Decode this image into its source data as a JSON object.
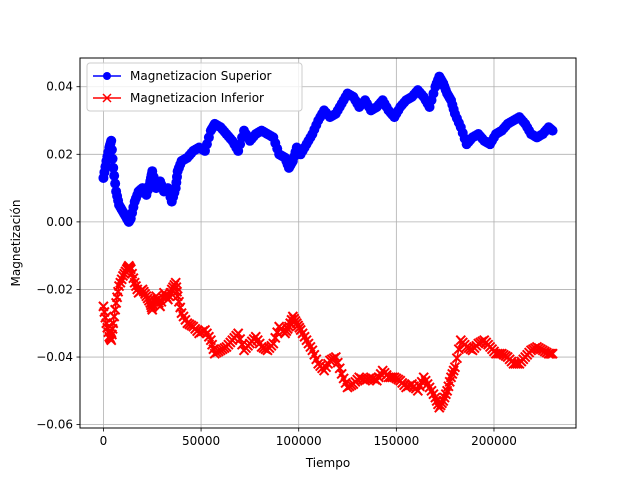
{
  "chart_data": {
    "type": "line",
    "title": "",
    "xlabel": "Tiempo",
    "ylabel": "Magnetización",
    "xlim": [
      -12000,
      242000
    ],
    "ylim": [
      -0.061,
      0.0485
    ],
    "xticks": [
      0,
      50000,
      100000,
      150000,
      200000
    ],
    "xtick_labels": [
      "0",
      "50000",
      "100000",
      "150000",
      "200000"
    ],
    "yticks": [
      -0.06,
      -0.04,
      -0.02,
      0.0,
      0.02,
      0.04
    ],
    "ytick_labels": [
      "−0.06",
      "−0.04",
      "−0.02",
      "0.00",
      "0.02",
      "0.04"
    ],
    "grid": true,
    "legend_position": "top-left",
    "series": [
      {
        "name": "Magnetizacion Superior",
        "color": "#0000ff",
        "marker": "circle",
        "x": [
          0,
          1500,
          3000,
          4000,
          5000,
          6500,
          8000,
          10000,
          12000,
          13000,
          14000,
          16000,
          18000,
          20000,
          22000,
          24000,
          25000,
          27000,
          29000,
          31000,
          33000,
          35000,
          37000,
          38000,
          40000,
          43000,
          46000,
          49000,
          52000,
          55000,
          57000,
          60000,
          63000,
          66000,
          69000,
          72000,
          75000,
          78000,
          81000,
          84000,
          87000,
          90000,
          93000,
          95000,
          97000,
          99000,
          101000,
          104000,
          107000,
          110000,
          113000,
          116000,
          119000,
          122000,
          125000,
          128000,
          131000,
          134000,
          137000,
          140000,
          143000,
          146000,
          149000,
          152000,
          155000,
          158000,
          161000,
          164000,
          167000,
          170000,
          172000,
          174000,
          176000,
          178000,
          180000,
          183000,
          186000,
          189000,
          192000,
          195000,
          198000,
          201000,
          204000,
          207000,
          210000,
          213000,
          216000,
          219000,
          222000,
          225000,
          228000,
          230000
        ],
        "y": [
          0.013,
          0.018,
          0.022,
          0.024,
          0.016,
          0.009,
          0.005,
          0.003,
          0.001,
          0.0,
          0.001,
          0.006,
          0.009,
          0.01,
          0.008,
          0.012,
          0.015,
          0.01,
          0.012,
          0.009,
          0.01,
          0.006,
          0.01,
          0.015,
          0.018,
          0.019,
          0.021,
          0.022,
          0.021,
          0.027,
          0.029,
          0.028,
          0.026,
          0.024,
          0.021,
          0.027,
          0.024,
          0.026,
          0.027,
          0.026,
          0.025,
          0.02,
          0.019,
          0.016,
          0.018,
          0.022,
          0.02,
          0.023,
          0.026,
          0.03,
          0.033,
          0.031,
          0.032,
          0.035,
          0.038,
          0.037,
          0.034,
          0.036,
          0.033,
          0.034,
          0.036,
          0.033,
          0.031,
          0.034,
          0.036,
          0.037,
          0.039,
          0.037,
          0.034,
          0.04,
          0.043,
          0.041,
          0.038,
          0.036,
          0.032,
          0.028,
          0.023,
          0.025,
          0.026,
          0.024,
          0.023,
          0.026,
          0.027,
          0.029,
          0.03,
          0.031,
          0.029,
          0.026,
          0.025,
          0.026,
          0.028,
          0.027
        ]
      },
      {
        "name": "Magnetizacion Inferior",
        "color": "#ff0000",
        "marker": "x",
        "x": [
          0,
          1500,
          3000,
          4000,
          5000,
          6500,
          8000,
          10000,
          12000,
          13000,
          14000,
          16000,
          18000,
          20000,
          22000,
          24000,
          25000,
          27000,
          29000,
          31000,
          33000,
          35000,
          37000,
          38000,
          40000,
          43000,
          46000,
          49000,
          52000,
          55000,
          57000,
          60000,
          63000,
          66000,
          69000,
          72000,
          75000,
          78000,
          81000,
          84000,
          87000,
          90000,
          93000,
          95000,
          97000,
          99000,
          101000,
          104000,
          107000,
          110000,
          113000,
          116000,
          119000,
          122000,
          125000,
          128000,
          131000,
          134000,
          137000,
          140000,
          143000,
          146000,
          149000,
          152000,
          155000,
          158000,
          161000,
          164000,
          167000,
          170000,
          172000,
          174000,
          176000,
          178000,
          180000,
          183000,
          186000,
          189000,
          192000,
          195000,
          198000,
          201000,
          204000,
          207000,
          210000,
          213000,
          216000,
          219000,
          222000,
          225000,
          228000,
          230000
        ],
        "y": [
          -0.025,
          -0.03,
          -0.034,
          -0.035,
          -0.03,
          -0.024,
          -0.019,
          -0.016,
          -0.014,
          -0.013,
          -0.014,
          -0.018,
          -0.021,
          -0.02,
          -0.022,
          -0.024,
          -0.026,
          -0.022,
          -0.025,
          -0.021,
          -0.023,
          -0.02,
          -0.018,
          -0.022,
          -0.027,
          -0.03,
          -0.031,
          -0.033,
          -0.032,
          -0.035,
          -0.039,
          -0.038,
          -0.037,
          -0.035,
          -0.033,
          -0.038,
          -0.036,
          -0.034,
          -0.037,
          -0.038,
          -0.036,
          -0.031,
          -0.033,
          -0.031,
          -0.028,
          -0.03,
          -0.032,
          -0.035,
          -0.038,
          -0.042,
          -0.044,
          -0.041,
          -0.04,
          -0.045,
          -0.049,
          -0.048,
          -0.046,
          -0.047,
          -0.046,
          -0.047,
          -0.044,
          -0.046,
          -0.046,
          -0.047,
          -0.049,
          -0.048,
          -0.05,
          -0.046,
          -0.049,
          -0.052,
          -0.055,
          -0.053,
          -0.05,
          -0.046,
          -0.043,
          -0.035,
          -0.037,
          -0.038,
          -0.036,
          -0.035,
          -0.037,
          -0.039,
          -0.039,
          -0.04,
          -0.042,
          -0.042,
          -0.04,
          -0.038,
          -0.037,
          -0.038,
          -0.039,
          -0.039
        ]
      }
    ]
  }
}
